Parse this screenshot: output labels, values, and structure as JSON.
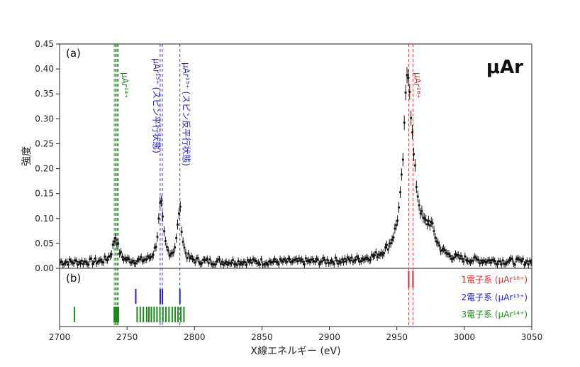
{
  "chart_data": {
    "type": "scatter",
    "title": "μAr",
    "xlabel": "X線エネルギー (eV)",
    "ylabel": "強度",
    "xlim": [
      2700,
      3050
    ],
    "ylim": [
      0,
      0.45
    ],
    "xticks": [
      "2700",
      "2750",
      "2800",
      "2850",
      "2900",
      "2950",
      "3000",
      "3050"
    ],
    "yticks": [
      "0.00",
      "0.05",
      "0.10",
      "0.15",
      "0.20",
      "0.25",
      "0.30",
      "0.35",
      "0.40",
      "0.45"
    ],
    "panel_a_label": "(a)",
    "panel_b_label": "(b)",
    "grid": false,
    "colors": {
      "green": "#1a8a1a",
      "blue": "#2222cc",
      "red": "#d62728",
      "data": "#111111"
    },
    "peak_annotations": [
      {
        "text": "μAr¹⁴⁺",
        "x": 2742,
        "color": "#1a8a1a"
      },
      {
        "text": "μAr¹⁵⁺ (スピン平行状態)",
        "x": 2775,
        "color": "#2222cc"
      },
      {
        "text": "μAr¹⁵⁺ (スピン反平行状態)",
        "x": 2789,
        "color": "#2222cc"
      },
      {
        "text": "μAr¹⁶⁺",
        "x": 2960,
        "color": "#d62728"
      }
    ],
    "reference_lines": [
      {
        "x": 2740.5,
        "color": "#1a8a1a"
      },
      {
        "x": 2741.3,
        "color": "#1a8a1a"
      },
      {
        "x": 2742.1,
        "color": "#1a8a1a"
      },
      {
        "x": 2742.9,
        "color": "#1a8a1a"
      },
      {
        "x": 2743.6,
        "color": "#1a8a1a"
      },
      {
        "x": 2774.6,
        "color": "#2222cc"
      },
      {
        "x": 2776.2,
        "color": "#2222cc"
      },
      {
        "x": 2789.2,
        "color": "#2222cc"
      },
      {
        "x": 2958.8,
        "color": "#d62728"
      },
      {
        "x": 2961.9,
        "color": "#d62728"
      }
    ],
    "spectrum": {
      "baseline": 0.012,
      "peaks": [
        {
          "center": 2741.5,
          "height": 0.05,
          "width": 2.5
        },
        {
          "center": 2775,
          "height": 0.115,
          "width": 2.3
        },
        {
          "center": 2789,
          "height": 0.105,
          "width": 2.0
        },
        {
          "center": 2958,
          "height": 0.3,
          "width": 3.5
        },
        {
          "center": 2961,
          "height": 0.1,
          "width": 7.5
        },
        {
          "center": 2975,
          "height": 0.045,
          "width": 4.5
        }
      ]
    },
    "transition_lines": [
      {
        "name": "1電子系 (μAr¹⁶⁺)",
        "color": "#d62728",
        "x": [
          2958.8,
          2961.9
        ]
      },
      {
        "name": "2電子系 (μAr¹⁵⁺)",
        "color": "#2222cc",
        "x": [
          2756.5,
          2774.6,
          2776.2,
          2789.2
        ]
      },
      {
        "name": "3電子系 (μAr¹⁴⁺)",
        "color": "#1a8a1a",
        "x": [
          2711.0,
          2740.5,
          2741.3,
          2742.1,
          2742.9,
          2743.6,
          2757.5,
          2759.8,
          2762.1,
          2764.6,
          2766.2,
          2768.0,
          2770.1,
          2772.2,
          2774.4,
          2776.6,
          2778.8,
          2781.1,
          2783.5,
          2785.7,
          2787.8,
          2789.9,
          2792.2
        ]
      }
    ]
  }
}
